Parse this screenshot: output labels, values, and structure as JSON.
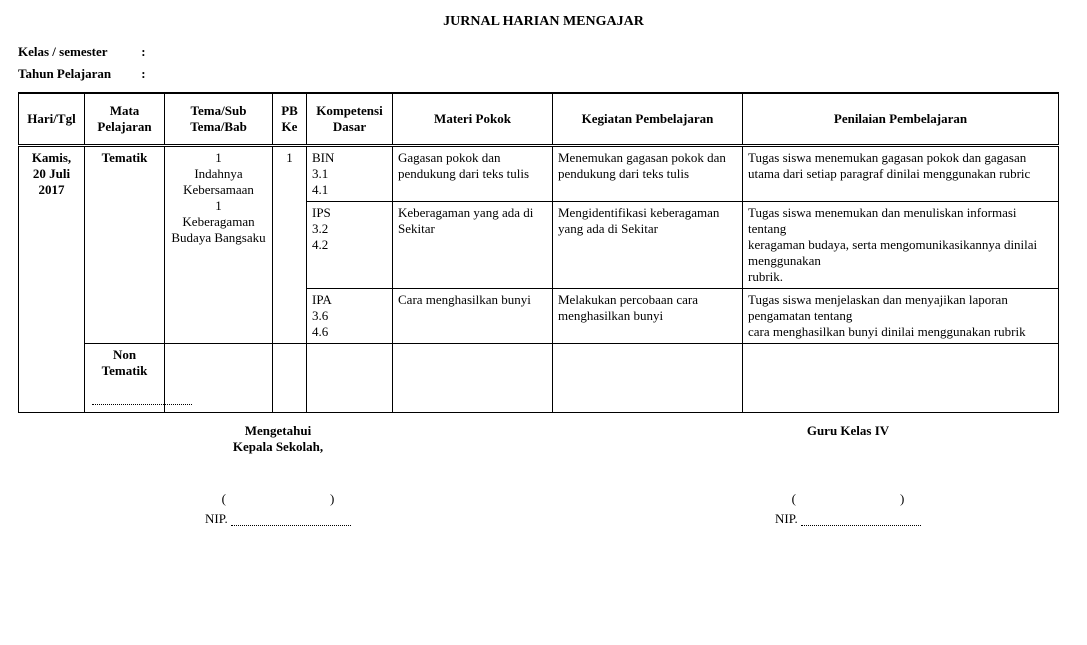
{
  "title": "JURNAL HARIAN MENGAJAR",
  "meta": {
    "kelas_label": "Kelas / semester",
    "tahun_label": "Tahun Pelajaran",
    "colon": ":"
  },
  "headers": {
    "hari": "Hari/Tgl",
    "mapel": "Mata Pelajaran",
    "tema": "Tema/Sub Tema/Bab",
    "pb": "PB Ke",
    "kd": "Kompetensi Dasar",
    "materi": "Materi Pokok",
    "kegiatan": "Kegiatan Pembelajaran",
    "penilaian": "Penilaian Pembelajaran"
  },
  "hari_tgl": "Kamis,\n20 Juli\n2017",
  "tematik_label": "Tematik",
  "non_tematik_label": "Non Tematik",
  "tema_cell": "1\nIndahnya Kebersamaan\n1\nKeberagaman Budaya Bangsaku",
  "pb_ke": "1",
  "rows": [
    {
      "kd": "BIN\n3.1\n4.1",
      "materi": "Gagasan pokok dan pendukung dari teks tulis",
      "kegiatan": "Menemukan gagasan pokok dan pendukung dari teks tulis",
      "penilaian": "Tugas siswa menemukan gagasan pokok dan gagasan utama dari setiap paragraf dinilai menggunakan rubric"
    },
    {
      "kd": "IPS\n3.2\n4.2",
      "materi": "Keberagaman yang ada di Sekitar",
      "kegiatan": "Mengidentifikasi keberagaman yang ada di Sekitar",
      "penilaian": "Tugas siswa menemukan dan menuliskan informasi tentang\nkeragaman budaya, serta mengomunikasikannya dinilai menggunakan\nrubrik."
    },
    {
      "kd": "IPA\n3.6\n4.6",
      "materi": " Cara menghasilkan bunyi",
      "kegiatan": "Melakukan percobaan cara menghasilkan bunyi",
      "penilaian": "Tugas siswa menjelaskan dan menyajikan laporan pengamatan tentang\ncara menghasilkan bunyi dinilai menggunakan rubrik"
    }
  ],
  "sign": {
    "mengetahui": "Mengetahui",
    "kepsek": "Kepala Sekolah,",
    "guru": "Guru Kelas IV",
    "paren_l": "(",
    "paren_r": ")",
    "nip": "NIP."
  }
}
